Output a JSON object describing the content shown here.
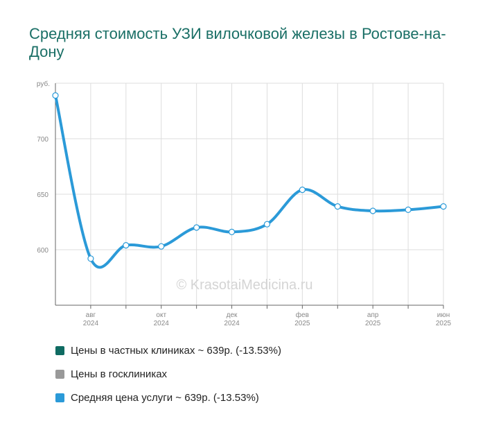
{
  "title": "Средняя стоимость УЗИ вилочковой железы в Ростове-на-Дону",
  "watermark": "© KrasotaiMedicina.ru",
  "colors": {
    "title": "#1a6f66",
    "line": "#2b9ad8",
    "private": "#0f6b62",
    "public": "#999999",
    "average": "#2b9ad8"
  },
  "legend": [
    {
      "label": "Цены в частных клиниках ~ 639р. (-13.53%)",
      "color": "#0f6b62"
    },
    {
      "label": "Цены в госклиниках",
      "color": "#999999"
    },
    {
      "label": "Средняя цена услуги ~ 639р. (-13.53%)",
      "color": "#2b9ad8"
    }
  ],
  "chart_data": {
    "type": "line",
    "title": "Средняя стоимость УЗИ вилочковой железы в Ростове-на-Дону",
    "ylabel": "руб.",
    "ylim": [
      550,
      750
    ],
    "yticks": [
      600,
      650,
      700
    ],
    "grid": true,
    "x": [
      "2024-07",
      "2024-08",
      "2024-09",
      "2024-10",
      "2024-11",
      "2024-12",
      "2025-01",
      "2025-02",
      "2025-03",
      "2025-04",
      "2025-05",
      "2025-06"
    ],
    "xtick_labels": [
      {
        "month": "авг",
        "year": "2024"
      },
      {
        "month": "окт",
        "year": "2024"
      },
      {
        "month": "дек",
        "year": "2024"
      },
      {
        "month": "фев",
        "year": "2025"
      },
      {
        "month": "апр",
        "year": "2025"
      },
      {
        "month": "июн",
        "year": "2025"
      }
    ],
    "series": [
      {
        "name": "Средняя цена услуги",
        "values": [
          739,
          592,
          604,
          603,
          620,
          616,
          623,
          654,
          639,
          635,
          636,
          639
        ]
      }
    ]
  }
}
